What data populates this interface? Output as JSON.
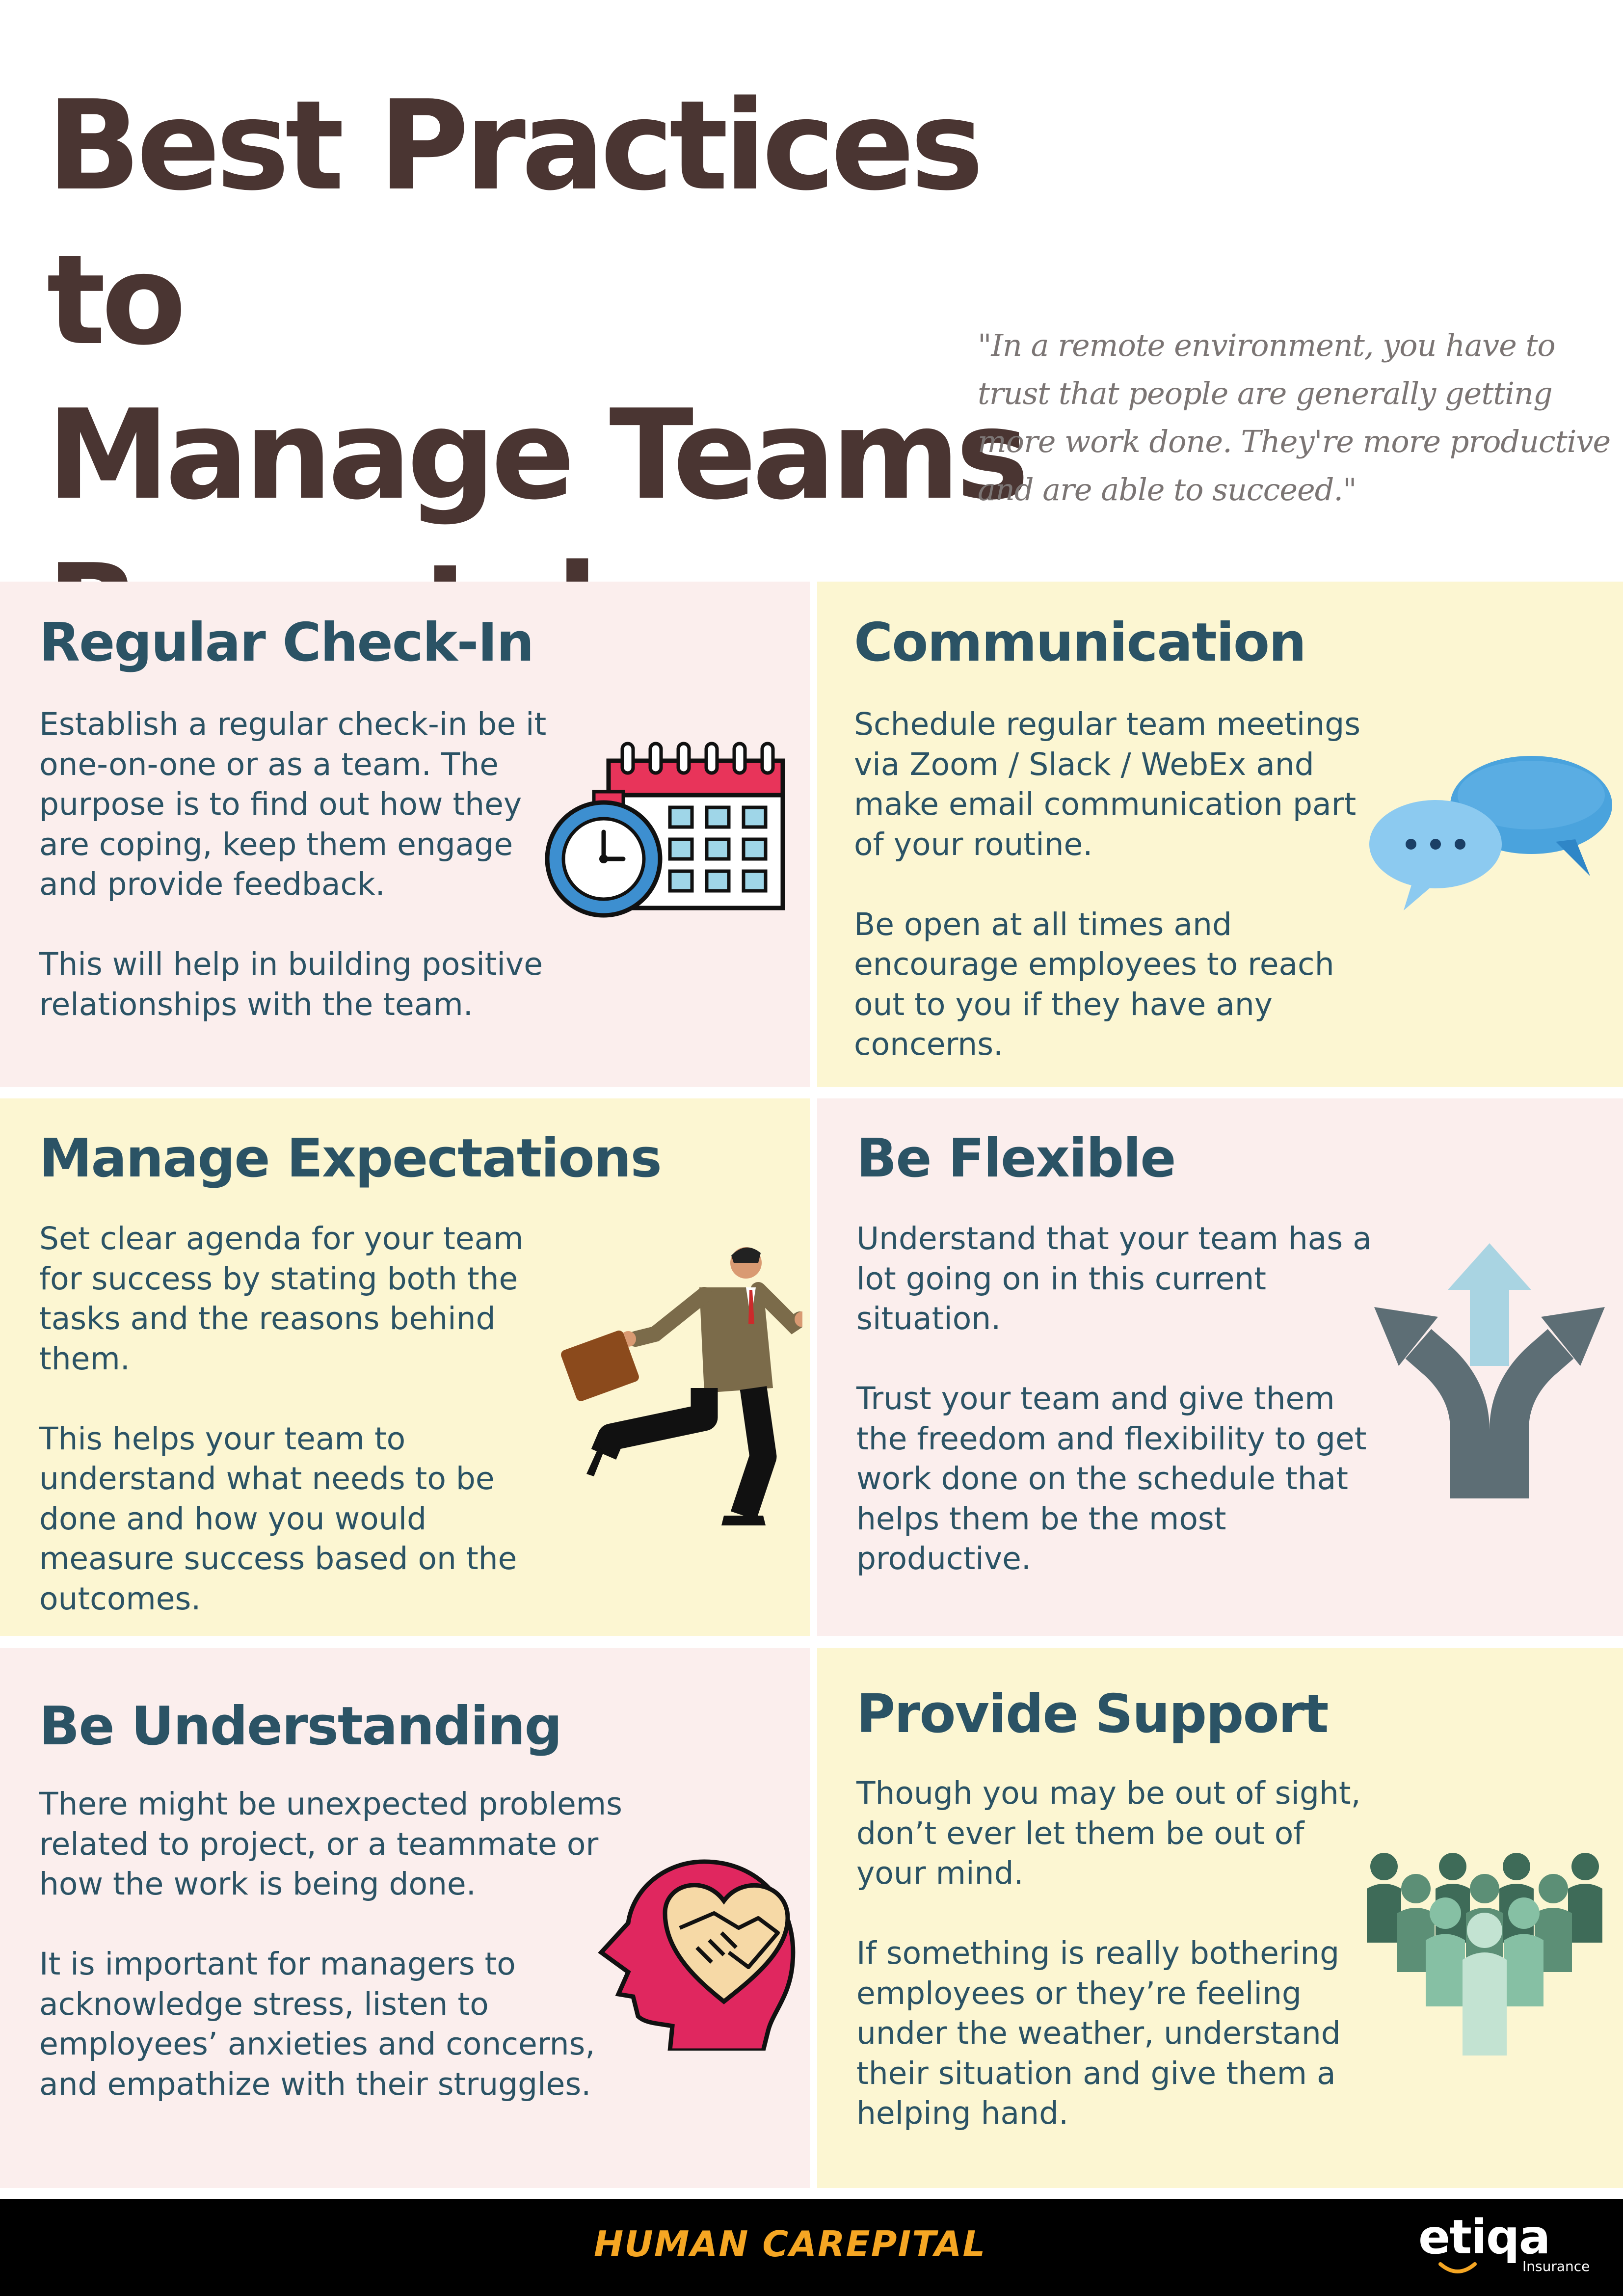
{
  "header": {
    "title_lines": [
      "Best Practices to",
      "Manage Teams",
      "Remotely"
    ],
    "quote": "\"In a remote environment, you have to trust that people are generally getting more work done. They're more productive and are able to succeed.\""
  },
  "colors": {
    "title": "#4a3532",
    "heading": "#2b5365",
    "panel_pink": "#fbeeed",
    "panel_yellow": "#fcf6d2",
    "footer_bg": "#000000",
    "brand": "#f5a623"
  },
  "sections": [
    {
      "heading": "Regular Check-In",
      "paragraphs": [
        "Establish a regular check-in be it one-on-one or as a team. The purpose is to find out how they are coping, keep them engage and provide feedback.",
        "This will help in building positive relationships with the team."
      ],
      "icon": "calendar-stopwatch-icon"
    },
    {
      "heading": "Communication",
      "paragraphs": [
        "Schedule regular team meetings via Zoom / Slack / WebEx and make email communication part of your routine.",
        "Be open at all times and encourage employees to reach out to you if they have any concerns."
      ],
      "icon": "chat-bubbles-icon"
    },
    {
      "heading": "Manage Expectations",
      "paragraphs": [
        "Set clear agenda for your team for success by stating both the tasks and the reasons behind them.",
        "This helps your team to understand what needs to be done and how you would measure success based on the outcomes."
      ],
      "icon": "running-businessman-icon"
    },
    {
      "heading": "Be Flexible",
      "paragraphs": [
        "Understand that your team has a lot going on in this current situation.",
        "Trust your team and give them the freedom and flexibility to get work done on the schedule that helps them be the most productive."
      ],
      "icon": "diverging-arrows-icon"
    },
    {
      "heading": "Be Understanding",
      "paragraphs": [
        "There might be unexpected problems related to project, or a teammate or how the work is being done.",
        "It is important for managers to acknowledge stress, listen to employees’ anxieties and concerns, and empathize with their struggles."
      ],
      "icon": "head-handshake-heart-icon"
    },
    {
      "heading": "Provide Support",
      "paragraphs": [
        "Though you may be out of sight, don’t ever let them be out of your mind.",
        "If something is really bothering employees or they’re feeling under the weather, understand their situation and give them a helping hand."
      ],
      "icon": "team-group-icon"
    }
  ],
  "footer": {
    "brand": "HUMAN CAREPITAL",
    "logo": "etiqa",
    "logo_sub": "Insurance"
  }
}
